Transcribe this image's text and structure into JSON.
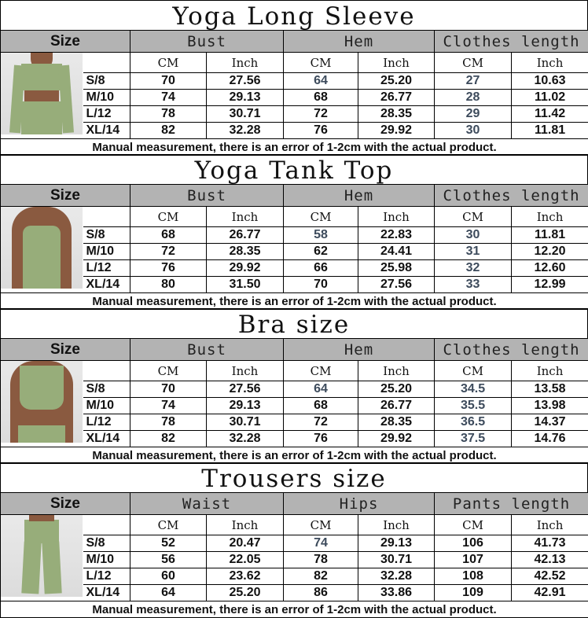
{
  "colors": {
    "header_bg": "#b3b3b3",
    "muted_value": "#3d4b5c",
    "garment": "#97ad7a"
  },
  "size_label": "Size",
  "unit_cm": "CM",
  "unit_inch": "Inch",
  "note": "Manual measurement, there is an error of 1-2cm with the actual product.",
  "sections": [
    {
      "title": "Yoga Long Sleeve",
      "image": "long-sleeve-crop-top-photo",
      "columns": [
        "Bust",
        "Hem",
        "Clothes length"
      ],
      "rows": [
        {
          "size": "S/8",
          "values": [
            "70",
            "27.56",
            "64",
            "25.20",
            "27",
            "10.63"
          ]
        },
        {
          "size": "M/10",
          "values": [
            "74",
            "29.13",
            "68",
            "26.77",
            "28",
            "11.02"
          ]
        },
        {
          "size": "L/12",
          "values": [
            "78",
            "30.71",
            "72",
            "28.35",
            "29",
            "11.42"
          ]
        },
        {
          "size": "XL/14",
          "values": [
            "82",
            "32.28",
            "76",
            "29.92",
            "30",
            "11.81"
          ]
        }
      ],
      "muted": [
        "0-2",
        "0-4",
        "1-4",
        "2-4",
        "3-4"
      ]
    },
    {
      "title": "Yoga Tank Top",
      "image": "tank-top-photo",
      "columns": [
        "Bust",
        "Hem",
        "Clothes length"
      ],
      "rows": [
        {
          "size": "S/8",
          "values": [
            "68",
            "26.77",
            "58",
            "22.83",
            "30",
            "11.81"
          ]
        },
        {
          "size": "M/10",
          "values": [
            "72",
            "28.35",
            "62",
            "24.41",
            "31",
            "12.20"
          ]
        },
        {
          "size": "L/12",
          "values": [
            "76",
            "29.92",
            "66",
            "25.98",
            "32",
            "12.60"
          ]
        },
        {
          "size": "XL/14",
          "values": [
            "80",
            "31.50",
            "70",
            "27.56",
            "33",
            "12.99"
          ]
        }
      ],
      "muted": [
        "0-2",
        "0-4",
        "1-4",
        "2-4",
        "3-4"
      ]
    },
    {
      "title": "Bra size",
      "image": "sports-bra-photo",
      "columns": [
        "Bust",
        "Hem",
        "Clothes length"
      ],
      "rows": [
        {
          "size": "S/8",
          "values": [
            "70",
            "27.56",
            "64",
            "25.20",
            "34.5",
            "13.58"
          ]
        },
        {
          "size": "M/10",
          "values": [
            "74",
            "29.13",
            "68",
            "26.77",
            "35.5",
            "13.98"
          ]
        },
        {
          "size": "L/12",
          "values": [
            "78",
            "30.71",
            "72",
            "28.35",
            "36.5",
            "14.37"
          ]
        },
        {
          "size": "XL/14",
          "values": [
            "82",
            "32.28",
            "76",
            "29.92",
            "37.5",
            "14.76"
          ]
        }
      ],
      "muted": [
        "0-2",
        "0-4",
        "1-4",
        "2-4",
        "3-4"
      ]
    },
    {
      "title": "Trousers size",
      "image": "flare-trousers-photo",
      "columns": [
        "Waist",
        "Hips",
        "Pants length"
      ],
      "rows": [
        {
          "size": "S/8",
          "values": [
            "52",
            "20.47",
            "74",
            "29.13",
            "106",
            "41.73"
          ]
        },
        {
          "size": "M/10",
          "values": [
            "56",
            "22.05",
            "78",
            "30.71",
            "107",
            "42.13"
          ]
        },
        {
          "size": "L/12",
          "values": [
            "60",
            "23.62",
            "82",
            "32.28",
            "108",
            "42.52"
          ]
        },
        {
          "size": "XL/14",
          "values": [
            "64",
            "25.20",
            "86",
            "33.86",
            "109",
            "42.91"
          ]
        }
      ],
      "muted": [
        "0-2"
      ]
    }
  ]
}
